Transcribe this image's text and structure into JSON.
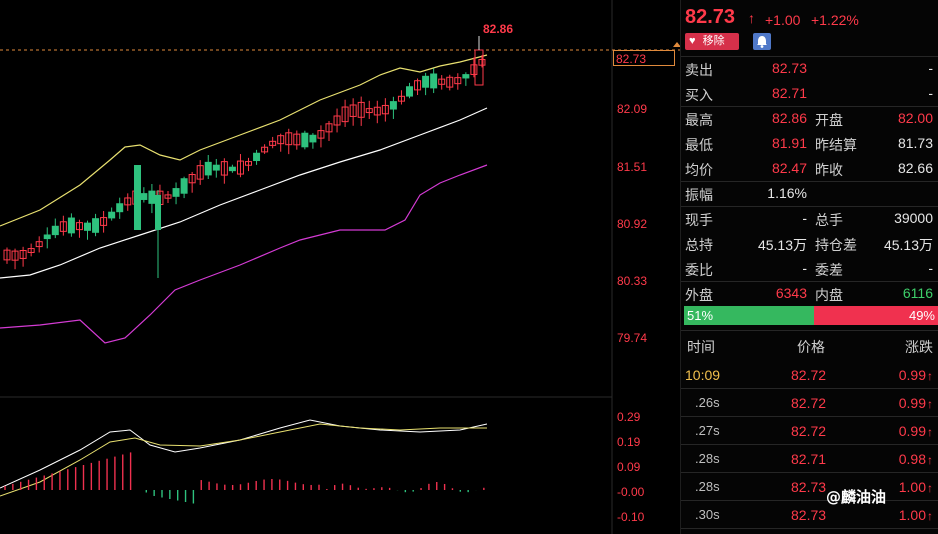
{
  "chart": {
    "last_price_box": "82.73",
    "high_marker": "82.86",
    "price_axis": [
      "82.09",
      "81.51",
      "80.92",
      "80.33",
      "79.74"
    ],
    "macd_axis": [
      "0.29",
      "0.19",
      "0.09",
      "-0.00",
      "-0.10"
    ],
    "colors": {
      "up": "#ff3a4a",
      "down": "#2ec27e",
      "ma_yellow": "#e8e070",
      "ma_white": "#ffffff",
      "ma_magenta": "#d43bd4"
    }
  },
  "quote": {
    "price": "82.73",
    "change": "+1.00",
    "change_pct": "+1.22%",
    "remove_label": "移除",
    "bell_icon": "bell-icon",
    "rows": [
      {
        "l1": "卖出",
        "v1": "82.73",
        "l2": "",
        "v2": "-"
      },
      {
        "l1": "买入",
        "v1": "82.71",
        "l2": "",
        "v2": "-"
      },
      {
        "l1": "最高",
        "v1": "82.86",
        "l2": "开盘",
        "v2": "82.00"
      },
      {
        "l1": "最低",
        "v1": "81.91",
        "l2": "昨结算",
        "v2": "81.73"
      },
      {
        "l1": "均价",
        "v1": "82.47",
        "l2": "昨收",
        "v2": "82.66"
      },
      {
        "l1": "振幅",
        "v1": "1.16%",
        "l2": "",
        "v2": ""
      },
      {
        "l1": "现手",
        "v1": "-",
        "l2": "总手",
        "v2": "39000"
      },
      {
        "l1": "总持",
        "v1": "45.13万",
        "l2": "持仓差",
        "v2": "45.13万"
      },
      {
        "l1": "委比",
        "v1": "-",
        "l2": "委差",
        "v2": "-"
      },
      {
        "l1": "外盘",
        "v1": "6343",
        "l2": "内盘",
        "v2": "6116"
      }
    ],
    "buy_ratio": "51%",
    "sell_ratio": "49%",
    "buy_fraction": 0.51
  },
  "trades": {
    "headers": [
      "时间",
      "价格",
      "涨跌"
    ],
    "rows": [
      {
        "time": "10:09",
        "price": "82.72",
        "chg": "0.99"
      },
      {
        "time": ".26s",
        "price": "82.72",
        "chg": "0.99"
      },
      {
        "time": ".27s",
        "price": "82.72",
        "chg": "0.99"
      },
      {
        "time": ".28s",
        "price": "82.71",
        "chg": "0.98"
      },
      {
        "time": ".28s",
        "price": "82.73",
        "chg": "1.00"
      },
      {
        "time": ".30s",
        "price": "82.73",
        "chg": "1.00"
      }
    ]
  },
  "watermark": "@麟油油"
}
